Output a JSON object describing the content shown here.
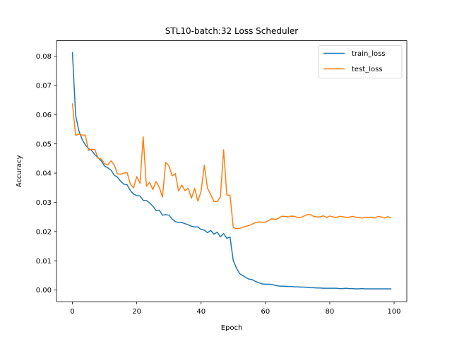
{
  "chart_data": {
    "type": "line",
    "title": "STL10-batch:32 Loss Scheduler",
    "xlabel": "Epoch",
    "ylabel": "Accuracy",
    "xlim": [
      -4.95,
      103.95
    ],
    "ylim": [
      -0.004,
      0.0853
    ],
    "xticks": [
      0,
      20,
      40,
      60,
      80,
      100
    ],
    "yticks": [
      0.0,
      0.01,
      0.02,
      0.03,
      0.04,
      0.05,
      0.06,
      0.07,
      0.08
    ],
    "xtick_labels": [
      "0",
      "20",
      "40",
      "60",
      "80",
      "100"
    ],
    "ytick_labels": [
      "0.00",
      "0.01",
      "0.02",
      "0.03",
      "0.04",
      "0.05",
      "0.06",
      "0.07",
      "0.08"
    ],
    "grid": false,
    "legend_position": "top-right",
    "series": [
      {
        "name": "train_loss",
        "color": "#1f77b4",
        "x": [
          0,
          1,
          2,
          3,
          4,
          5,
          6,
          7,
          8,
          9,
          10,
          11,
          12,
          13,
          14,
          15,
          16,
          17,
          18,
          19,
          20,
          21,
          22,
          23,
          24,
          25,
          26,
          27,
          28,
          29,
          30,
          31,
          32,
          33,
          34,
          35,
          36,
          37,
          38,
          39,
          40,
          41,
          42,
          43,
          44,
          45,
          46,
          47,
          48,
          49,
          50,
          51,
          52,
          53,
          54,
          55,
          56,
          57,
          58,
          59,
          60,
          61,
          62,
          63,
          64,
          65,
          66,
          67,
          68,
          69,
          70,
          71,
          72,
          73,
          74,
          75,
          76,
          77,
          78,
          79,
          80,
          81,
          82,
          83,
          84,
          85,
          86,
          87,
          88,
          89,
          90,
          91,
          92,
          93,
          94,
          95,
          96,
          97,
          98,
          99
        ],
        "values": [
          0.0812,
          0.0598,
          0.0545,
          0.0516,
          0.0497,
          0.0484,
          0.0477,
          0.0463,
          0.0452,
          0.0441,
          0.0424,
          0.0418,
          0.041,
          0.0393,
          0.0386,
          0.0372,
          0.0362,
          0.036,
          0.0341,
          0.0328,
          0.0323,
          0.0322,
          0.0307,
          0.0306,
          0.0298,
          0.0287,
          0.0272,
          0.0273,
          0.0256,
          0.0258,
          0.0256,
          0.0243,
          0.0234,
          0.0231,
          0.0231,
          0.0227,
          0.0223,
          0.0218,
          0.0216,
          0.0216,
          0.0207,
          0.0205,
          0.0196,
          0.0204,
          0.0191,
          0.0198,
          0.0182,
          0.0193,
          0.0177,
          0.0181,
          0.0101,
          0.0075,
          0.0056,
          0.0049,
          0.0042,
          0.0037,
          0.0035,
          0.0029,
          0.0025,
          0.0021,
          0.002,
          0.002,
          0.0019,
          0.0016,
          0.0014,
          0.0013,
          0.0013,
          0.0012,
          0.0012,
          0.0011,
          0.0011,
          0.001,
          0.001,
          0.0009,
          0.0008,
          0.0008,
          0.0007,
          0.0007,
          0.0006,
          0.0006,
          0.0006,
          0.0006,
          0.0006,
          0.0005,
          0.0005,
          0.0006,
          0.0005,
          0.0005,
          0.0004,
          0.0004,
          0.0005,
          0.0004,
          0.0004,
          0.0004,
          0.0004,
          0.0004,
          0.0004,
          0.0004,
          0.0004,
          0.0004
        ]
      },
      {
        "name": "test_loss",
        "color": "#ff7f0e",
        "x": [
          0,
          1,
          2,
          3,
          4,
          5,
          6,
          7,
          8,
          9,
          10,
          11,
          12,
          13,
          14,
          15,
          16,
          17,
          18,
          19,
          20,
          21,
          22,
          23,
          24,
          25,
          26,
          27,
          28,
          29,
          30,
          31,
          32,
          33,
          34,
          35,
          36,
          37,
          38,
          39,
          40,
          41,
          42,
          43,
          44,
          45,
          46,
          47,
          48,
          49,
          50,
          51,
          52,
          53,
          54,
          55,
          56,
          57,
          58,
          59,
          60,
          61,
          62,
          63,
          64,
          65,
          66,
          67,
          68,
          69,
          70,
          71,
          72,
          73,
          74,
          75,
          76,
          77,
          78,
          79,
          80,
          81,
          82,
          83,
          84,
          85,
          86,
          87,
          88,
          89,
          90,
          91,
          92,
          93,
          94,
          95,
          96,
          97,
          98,
          99
        ],
        "values": [
          0.0637,
          0.0529,
          0.0534,
          0.053,
          0.053,
          0.0478,
          0.0482,
          0.048,
          0.0451,
          0.0448,
          0.0432,
          0.0428,
          0.0442,
          0.0428,
          0.0398,
          0.0396,
          0.04,
          0.0402,
          0.0363,
          0.0349,
          0.0388,
          0.0365,
          0.0524,
          0.0355,
          0.0368,
          0.0344,
          0.0371,
          0.0352,
          0.0318,
          0.0437,
          0.0425,
          0.0391,
          0.0398,
          0.0339,
          0.0359,
          0.034,
          0.0348,
          0.0314,
          0.0348,
          0.0304,
          0.0338,
          0.0427,
          0.0348,
          0.0326,
          0.0303,
          0.0303,
          0.0318,
          0.048,
          0.0325,
          0.0324,
          0.0214,
          0.021,
          0.0211,
          0.0215,
          0.0218,
          0.0221,
          0.0226,
          0.0231,
          0.0233,
          0.0232,
          0.0232,
          0.0238,
          0.0244,
          0.0241,
          0.0245,
          0.0252,
          0.0252,
          0.025,
          0.0253,
          0.0252,
          0.0248,
          0.0248,
          0.0253,
          0.0258,
          0.0258,
          0.0252,
          0.025,
          0.025,
          0.0254,
          0.0248,
          0.0253,
          0.025,
          0.0248,
          0.0252,
          0.0251,
          0.0249,
          0.0249,
          0.0252,
          0.0249,
          0.0249,
          0.0246,
          0.0249,
          0.0249,
          0.0249,
          0.0246,
          0.0252,
          0.025,
          0.0246,
          0.0251,
          0.0247
        ]
      }
    ]
  }
}
